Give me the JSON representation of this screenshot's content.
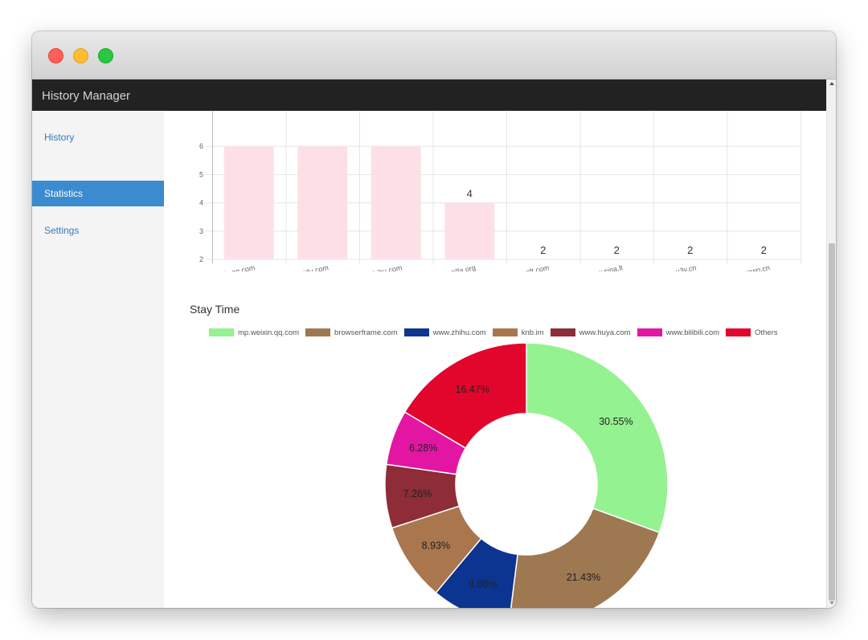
{
  "app": {
    "title": "History Manager"
  },
  "sidebar": {
    "items": [
      {
        "label": "History",
        "active": false
      },
      {
        "label": "Statistics",
        "active": true
      },
      {
        "label": "Settings",
        "active": false
      }
    ]
  },
  "visits_chart": {
    "type": "bar",
    "categories": [
      "mp.weixin.qq.com",
      "www.baidu.com",
      "www.zhihu.com",
      "www.mozilla.org",
      "www.microsoft.com",
      "www.sina.lt",
      "u3v.cn",
      "home.suowo.cn"
    ],
    "y_ticks": [
      "2",
      "3",
      "4",
      "5",
      "6"
    ],
    "y_tick_values": [
      2,
      3,
      4,
      5,
      6
    ],
    "values": [
      6,
      6,
      6,
      4,
      2,
      2,
      2,
      2
    ],
    "value_labels": [
      "",
      "",
      "",
      "4",
      "2",
      "2",
      "2",
      "2"
    ],
    "bar_color": "#fde0e6",
    "grid": true
  },
  "stay_time": {
    "title": "Stay Time",
    "chart_data": {
      "type": "pie",
      "labels": [
        "mp.weixin.qq.com",
        "browserframe.com",
        "www.zhihu.com",
        "knb.im",
        "www.huya.com",
        "www.bilibili.com",
        "Others"
      ],
      "values": [
        30.55,
        21.43,
        9.08,
        8.93,
        7.26,
        6.28,
        16.47
      ],
      "value_labels": [
        "30.55%",
        "21.43%",
        "9.08%",
        "8.93%",
        "7.26%",
        "6.28%",
        "16.47%"
      ],
      "colors": [
        "#95f291",
        "#9e7851",
        "#0b3590",
        "#a9764e",
        "#8e2c37",
        "#e216a3",
        "#e2062c"
      ],
      "legend_position": "top",
      "donut": true
    }
  }
}
